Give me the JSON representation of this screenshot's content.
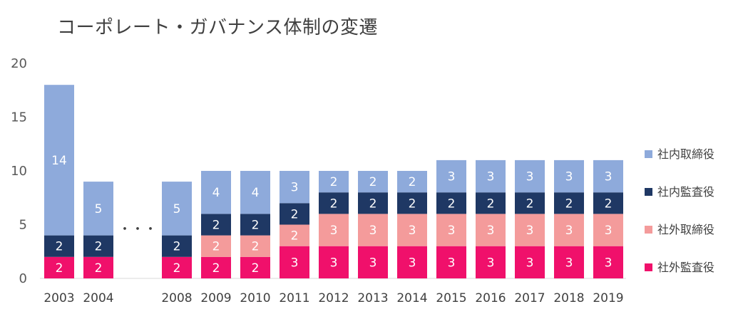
{
  "chart_data": {
    "type": "bar",
    "stacked": true,
    "title": "コーポレート・ガバナンス体制の変遷",
    "categories": [
      "2003",
      "2004",
      "",
      "2008",
      "2009",
      "2010",
      "2011",
      "2012",
      "2013",
      "2014",
      "2015",
      "2016",
      "2017",
      "2018",
      "2019"
    ],
    "gap_marker": "・・・",
    "series": [
      {
        "name": "社外監査役",
        "color": "#f0106b",
        "values": [
          2,
          2,
          null,
          2,
          2,
          2,
          3,
          3,
          3,
          3,
          3,
          3,
          3,
          3,
          3
        ]
      },
      {
        "name": "社外取締役",
        "color": "#f49b9b",
        "values": [
          0,
          0,
          null,
          0,
          2,
          2,
          2,
          3,
          3,
          3,
          3,
          3,
          3,
          3,
          3
        ]
      },
      {
        "name": "社内監査役",
        "color": "#1f3864",
        "values": [
          2,
          2,
          null,
          2,
          2,
          2,
          2,
          2,
          2,
          2,
          2,
          2,
          2,
          2,
          2
        ]
      },
      {
        "name": "社内取締役",
        "color": "#8eaadb",
        "values": [
          14,
          5,
          null,
          5,
          4,
          4,
          3,
          2,
          2,
          2,
          3,
          3,
          3,
          3,
          3
        ]
      }
    ],
    "ylim": [
      0,
      20
    ],
    "yticks": [
      0,
      5,
      10,
      15,
      20
    ],
    "legend_position": "right",
    "legend_order": [
      "社内取締役",
      "社内監査役",
      "社外取締役",
      "社外監査役"
    ],
    "grid": false
  }
}
